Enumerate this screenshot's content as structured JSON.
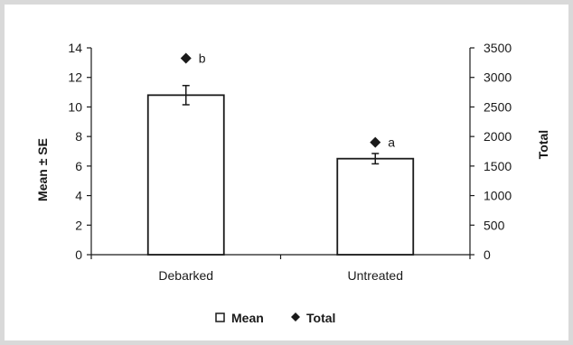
{
  "chart_data": {
    "type": "bar",
    "categories": [
      "Debarked",
      "Untreated"
    ],
    "series": [
      {
        "name": "Mean",
        "axis": "left",
        "values": [
          10.8,
          6.5
        ],
        "se": [
          0.65,
          0.35
        ],
        "marker": "open-square"
      },
      {
        "name": "Total",
        "axis": "right",
        "values": [
          3325,
          1900
        ],
        "marker": "diamond"
      }
    ],
    "annotations": [
      "b",
      "a"
    ],
    "ylabel": "Mean ± SE",
    "y2label": "Total",
    "ylim": [
      0,
      14
    ],
    "y2lim": [
      0,
      3500
    ],
    "yticks": [
      "0",
      "2",
      "4",
      "6",
      "8",
      "10",
      "12",
      "14"
    ],
    "y2ticks": [
      "0",
      "500",
      "1000",
      "1500",
      "2000",
      "2500",
      "3000",
      "3500"
    ],
    "grid": false,
    "legend": "bottom-center",
    "colors": {
      "bar_fill": "#ffffff",
      "stroke": "#1a1a1a",
      "frame": "#d9d9d9"
    }
  }
}
